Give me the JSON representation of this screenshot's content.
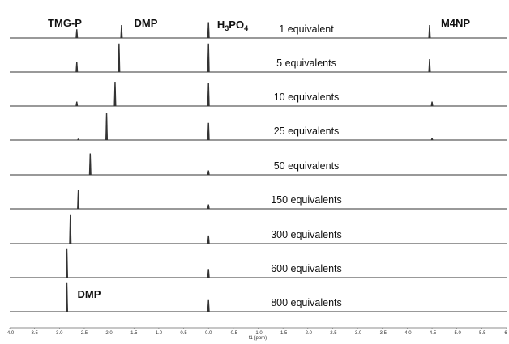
{
  "chart_data": {
    "type": "line",
    "subtype": "stacked NMR spectra",
    "xlabel": "f1 (ppm)",
    "xlim": [
      4.0,
      -6.0
    ],
    "x_reversed": true,
    "xticks": [
      4.0,
      3.5,
      3.0,
      2.5,
      2.0,
      1.5,
      1.0,
      0.5,
      0.0,
      -0.5,
      -1.0,
      -1.5,
      -2.0,
      -2.5,
      -3.0,
      -3.5,
      -4.0,
      -4.5,
      -5.0,
      -5.5,
      -6.0
    ],
    "xtick_labels": [
      "4.0",
      "3.5",
      "3.0",
      "2.5",
      "2.0",
      "1.5",
      "1.0",
      "0.5",
      "0.0",
      "-0.5",
      "-1.0",
      "-1.5",
      "-2.0",
      "-2.5",
      "-3.0",
      "-3.5",
      "-4.0",
      "-4.5",
      "-5.0",
      "-5.5",
      "-6"
    ],
    "peak_labels": [
      {
        "text": "TMG-P",
        "ppm": 2.65,
        "row": 0
      },
      {
        "text": "DMP",
        "ppm": 1.75,
        "row": 0
      },
      {
        "text": "H3PO4",
        "main": "H",
        "sub1": "3",
        "mid": "PO",
        "sub2": "4",
        "ppm": 0.0,
        "row": 0
      },
      {
        "text": "M4NP",
        "ppm": -4.45,
        "row": 0
      },
      {
        "text": "DMP",
        "ppm": 2.85,
        "row": 8
      }
    ],
    "series": [
      {
        "name": "1 equivalent",
        "peaks": [
          {
            "ppm": 2.65,
            "height": 0.3
          },
          {
            "ppm": 1.75,
            "height": 0.45
          },
          {
            "ppm": 0.0,
            "height": 0.55
          },
          {
            "ppm": -4.45,
            "height": 0.45
          }
        ]
      },
      {
        "name": "5 equivalents",
        "peaks": [
          {
            "ppm": 2.65,
            "height": 0.35
          },
          {
            "ppm": 1.8,
            "height": 1.0
          },
          {
            "ppm": 0.0,
            "height": 1.0
          },
          {
            "ppm": -4.45,
            "height": 0.45
          }
        ]
      },
      {
        "name": "10 equivalents",
        "peaks": [
          {
            "ppm": 2.65,
            "height": 0.15
          },
          {
            "ppm": 1.88,
            "height": 0.85
          },
          {
            "ppm": 0.0,
            "height": 0.8
          },
          {
            "ppm": -4.5,
            "height": 0.15
          }
        ]
      },
      {
        "name": "25 equivalents",
        "peaks": [
          {
            "ppm": 2.62,
            "height": 0.04
          },
          {
            "ppm": 2.05,
            "height": 0.95
          },
          {
            "ppm": 0.0,
            "height": 0.6
          },
          {
            "ppm": -4.5,
            "height": 0.06
          }
        ]
      },
      {
        "name": "50 equivalents",
        "peaks": [
          {
            "ppm": 2.38,
            "height": 0.75
          },
          {
            "ppm": 0.0,
            "height": 0.15
          }
        ]
      },
      {
        "name": "150 equivalents",
        "peaks": [
          {
            "ppm": 2.62,
            "height": 0.65
          },
          {
            "ppm": 0.0,
            "height": 0.15
          }
        ]
      },
      {
        "name": "300 equivalents",
        "peaks": [
          {
            "ppm": 2.78,
            "height": 1.0
          },
          {
            "ppm": 0.0,
            "height": 0.28
          }
        ]
      },
      {
        "name": "600 equivalents",
        "peaks": [
          {
            "ppm": 2.85,
            "height": 1.0
          },
          {
            "ppm": 0.0,
            "height": 0.3
          }
        ]
      },
      {
        "name": "800 equivalents",
        "peaks": [
          {
            "ppm": 2.85,
            "height": 1.0
          },
          {
            "ppm": 0.0,
            "height": 0.4
          }
        ]
      }
    ]
  },
  "colors": {
    "trace": "#333333",
    "text": "#111111",
    "axis": "#666666"
  }
}
